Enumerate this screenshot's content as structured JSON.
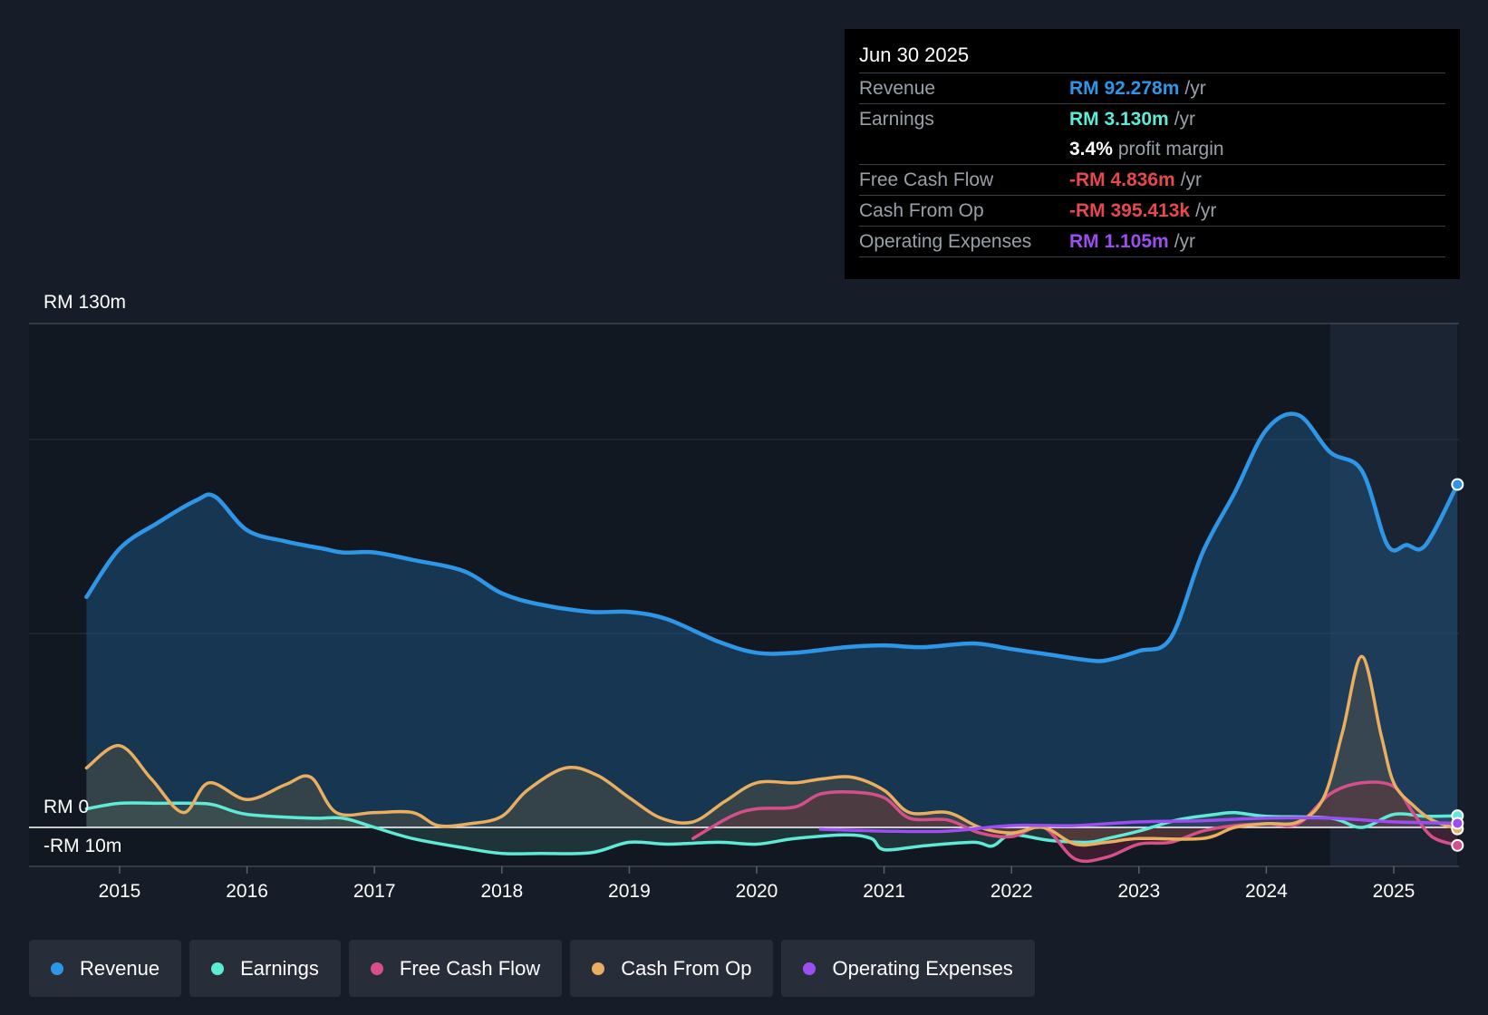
{
  "chart_data": {
    "type": "area",
    "title": "",
    "y_axis": {
      "top_label": "RM 130m",
      "zero_label": "RM 0",
      "bottom_label": "-RM 10m",
      "ylim": [
        -10,
        130
      ],
      "unit": "RM m"
    },
    "x_ticks": [
      "2015",
      "2016",
      "2017",
      "2018",
      "2019",
      "2020",
      "2021",
      "2022",
      "2023",
      "2024",
      "2025"
    ],
    "xlim": [
      2014.74,
      2025.5
    ],
    "highlight_from": 2024.5,
    "series": [
      {
        "name": "Revenue",
        "color": "#2e96e6",
        "points": [
          [
            2014.74,
            62
          ],
          [
            2015,
            75
          ],
          [
            2015.3,
            82
          ],
          [
            2015.6,
            88
          ],
          [
            2015.75,
            89
          ],
          [
            2016,
            80
          ],
          [
            2016.3,
            77
          ],
          [
            2016.6,
            75
          ],
          [
            2016.75,
            74
          ],
          [
            2017,
            74
          ],
          [
            2017.3,
            72
          ],
          [
            2017.7,
            69
          ],
          [
            2018,
            63
          ],
          [
            2018.3,
            60
          ],
          [
            2018.7,
            58
          ],
          [
            2019,
            58
          ],
          [
            2019.3,
            56
          ],
          [
            2019.7,
            50
          ],
          [
            2020,
            47
          ],
          [
            2020.3,
            47
          ],
          [
            2020.7,
            48.5
          ],
          [
            2021,
            49
          ],
          [
            2021.3,
            48.5
          ],
          [
            2021.7,
            49.5
          ],
          [
            2022,
            48
          ],
          [
            2022.3,
            46.5
          ],
          [
            2022.6,
            45
          ],
          [
            2022.75,
            45
          ],
          [
            2023,
            47.5
          ],
          [
            2023.25,
            51
          ],
          [
            2023.5,
            74
          ],
          [
            2023.75,
            90
          ],
          [
            2024,
            107
          ],
          [
            2024.25,
            111
          ],
          [
            2024.5,
            101
          ],
          [
            2024.75,
            96
          ],
          [
            2024.95,
            76
          ],
          [
            2025.1,
            76
          ],
          [
            2025.25,
            76
          ],
          [
            2025.5,
            92.3
          ]
        ]
      },
      {
        "name": "Earnings",
        "color": "#5eead4",
        "points": [
          [
            2014.74,
            5
          ],
          [
            2015,
            6.5
          ],
          [
            2015.3,
            6.5
          ],
          [
            2015.6,
            6.5
          ],
          [
            2015.75,
            6
          ],
          [
            2016,
            3.5
          ],
          [
            2016.5,
            2.5
          ],
          [
            2016.75,
            2.5
          ],
          [
            2017,
            0
          ],
          [
            2017.3,
            -3
          ],
          [
            2017.7,
            -5.5
          ],
          [
            2018,
            -7
          ],
          [
            2018.3,
            -7
          ],
          [
            2018.7,
            -6.8
          ],
          [
            2019,
            -4
          ],
          [
            2019.3,
            -4.5
          ],
          [
            2019.7,
            -4
          ],
          [
            2020,
            -4.5
          ],
          [
            2020.3,
            -3
          ],
          [
            2020.7,
            -2
          ],
          [
            2020.9,
            -3
          ],
          [
            2021,
            -6
          ],
          [
            2021.3,
            -5
          ],
          [
            2021.7,
            -4
          ],
          [
            2021.85,
            -5
          ],
          [
            2022,
            -2
          ],
          [
            2022.3,
            -3.5
          ],
          [
            2022.6,
            -4
          ],
          [
            2022.75,
            -3
          ],
          [
            2023,
            -1
          ],
          [
            2023.3,
            2
          ],
          [
            2023.6,
            3.5
          ],
          [
            2023.75,
            4
          ],
          [
            2024,
            3
          ],
          [
            2024.5,
            2.5
          ],
          [
            2024.75,
            0
          ],
          [
            2025,
            3.5
          ],
          [
            2025.25,
            3
          ],
          [
            2025.5,
            3.13
          ]
        ]
      },
      {
        "name": "Free Cash Flow",
        "color": "#d4508a",
        "points": [
          [
            2019.5,
            -3
          ],
          [
            2019.8,
            3
          ],
          [
            2020,
            5
          ],
          [
            2020.3,
            5.5
          ],
          [
            2020.5,
            9
          ],
          [
            2020.75,
            9.5
          ],
          [
            2021,
            8
          ],
          [
            2021.2,
            2.5
          ],
          [
            2021.5,
            2
          ],
          [
            2021.75,
            -1.5
          ],
          [
            2022,
            -2.5
          ],
          [
            2022.25,
            0
          ],
          [
            2022.5,
            -8.5
          ],
          [
            2022.75,
            -8
          ],
          [
            2023,
            -4.5
          ],
          [
            2023.25,
            -4
          ],
          [
            2023.5,
            -1
          ],
          [
            2023.75,
            0.5
          ],
          [
            2024,
            1
          ],
          [
            2024.25,
            1
          ],
          [
            2024.5,
            9
          ],
          [
            2024.75,
            12
          ],
          [
            2025,
            11
          ],
          [
            2025.15,
            4
          ],
          [
            2025.3,
            -2.5
          ],
          [
            2025.5,
            -4.836
          ]
        ]
      },
      {
        "name": "Cash From Op",
        "color": "#e9ae5f",
        "points": [
          [
            2014.74,
            16
          ],
          [
            2015,
            22
          ],
          [
            2015.25,
            13
          ],
          [
            2015.5,
            4
          ],
          [
            2015.7,
            12
          ],
          [
            2016,
            7.5
          ],
          [
            2016.3,
            11.5
          ],
          [
            2016.5,
            13.5
          ],
          [
            2016.7,
            4
          ],
          [
            2017,
            4
          ],
          [
            2017.3,
            4
          ],
          [
            2017.5,
            0.5
          ],
          [
            2017.75,
            1
          ],
          [
            2018,
            3
          ],
          [
            2018.2,
            10
          ],
          [
            2018.5,
            16
          ],
          [
            2018.75,
            14
          ],
          [
            2019,
            8
          ],
          [
            2019.25,
            2.5
          ],
          [
            2019.5,
            1.5
          ],
          [
            2019.75,
            7
          ],
          [
            2020,
            12
          ],
          [
            2020.3,
            12
          ],
          [
            2020.5,
            13
          ],
          [
            2020.75,
            13.5
          ],
          [
            2021,
            10
          ],
          [
            2021.2,
            4
          ],
          [
            2021.5,
            4
          ],
          [
            2021.75,
            0
          ],
          [
            2022,
            -1.5
          ],
          [
            2022.25,
            0
          ],
          [
            2022.5,
            -4.5
          ],
          [
            2022.75,
            -4
          ],
          [
            2023,
            -3
          ],
          [
            2023.5,
            -3
          ],
          [
            2023.75,
            0
          ],
          [
            2024,
            1
          ],
          [
            2024.25,
            1.5
          ],
          [
            2024.45,
            8
          ],
          [
            2024.6,
            26
          ],
          [
            2024.75,
            46
          ],
          [
            2024.9,
            25
          ],
          [
            2025,
            12
          ],
          [
            2025.15,
            6
          ],
          [
            2025.3,
            2
          ],
          [
            2025.5,
            -0.395
          ]
        ]
      },
      {
        "name": "Operating Expenses",
        "color": "#9d4ef0",
        "points": [
          [
            2020.5,
            -0.5
          ],
          [
            2021,
            -1
          ],
          [
            2021.5,
            -1
          ],
          [
            2022,
            0.5
          ],
          [
            2022.5,
            0.5
          ],
          [
            2023,
            1.5
          ],
          [
            2023.5,
            1.8
          ],
          [
            2024,
            2.5
          ],
          [
            2024.5,
            2.5
          ],
          [
            2025,
            1.5
          ],
          [
            2025.5,
            1.105
          ]
        ]
      }
    ]
  },
  "tooltip": {
    "date": "Jun 30 2025",
    "revenue": {
      "label": "Revenue",
      "value": "RM 92.278m",
      "unit": "/yr"
    },
    "earnings": {
      "label": "Earnings",
      "value": "RM 3.130m",
      "unit": "/yr"
    },
    "margin": {
      "value": "3.4%",
      "text": "profit margin"
    },
    "fcf": {
      "label": "Free Cash Flow",
      "value": "-RM 4.836m",
      "unit": "/yr"
    },
    "cfo": {
      "label": "Cash From Op",
      "value": "-RM 395.413k",
      "unit": "/yr"
    },
    "opex": {
      "label": "Operating Expenses",
      "value": "RM 1.105m",
      "unit": "/yr"
    }
  },
  "colors": {
    "revenue": "#2e96e6",
    "earnings": "#5eead4",
    "fcf": "#d4508a",
    "cfo": "#e9ae5f",
    "opex": "#9d4ef0",
    "negative": "#e5484d"
  },
  "legend": [
    {
      "label": "Revenue",
      "color": "#2e96e6"
    },
    {
      "label": "Earnings",
      "color": "#5eead4"
    },
    {
      "label": "Free Cash Flow",
      "color": "#d4508a"
    },
    {
      "label": "Cash From Op",
      "color": "#e9ae5f"
    },
    {
      "label": "Operating Expenses",
      "color": "#9d4ef0"
    }
  ]
}
